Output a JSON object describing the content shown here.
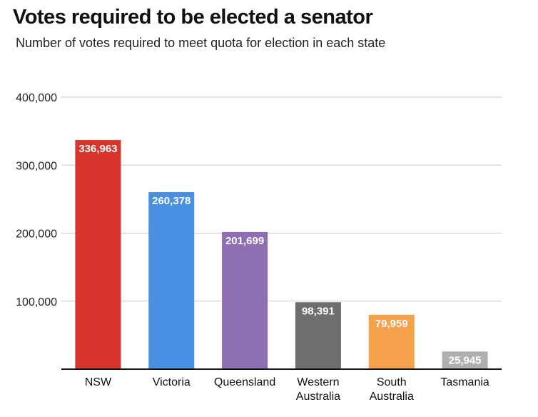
{
  "chart_data": {
    "type": "bar",
    "title": "Votes required to be elected a senator",
    "subtitle": "Number of votes required to meet quota for election in each state",
    "categories": [
      [
        "NSW"
      ],
      [
        "Victoria"
      ],
      [
        "Queensland"
      ],
      [
        "Western",
        "Australia"
      ],
      [
        "South",
        "Australia"
      ],
      [
        "Tasmania"
      ]
    ],
    "values": [
      336963,
      260378,
      201699,
      98391,
      79959,
      25945
    ],
    "value_labels": [
      "336,963",
      "260,378",
      "201,699",
      "98,391",
      "79,959",
      "25,945"
    ],
    "colors": [
      "#d9342b",
      "#4a90e2",
      "#8e6fb3",
      "#6e6e6e",
      "#f5a04a",
      "#b0b0b0"
    ],
    "ylim": [
      0,
      400000
    ],
    "yticks": [
      100000,
      200000,
      300000,
      400000
    ],
    "ytick_labels": [
      "100,000",
      "200,000",
      "300,000",
      "400,000"
    ],
    "grid": true,
    "legend": "none"
  }
}
